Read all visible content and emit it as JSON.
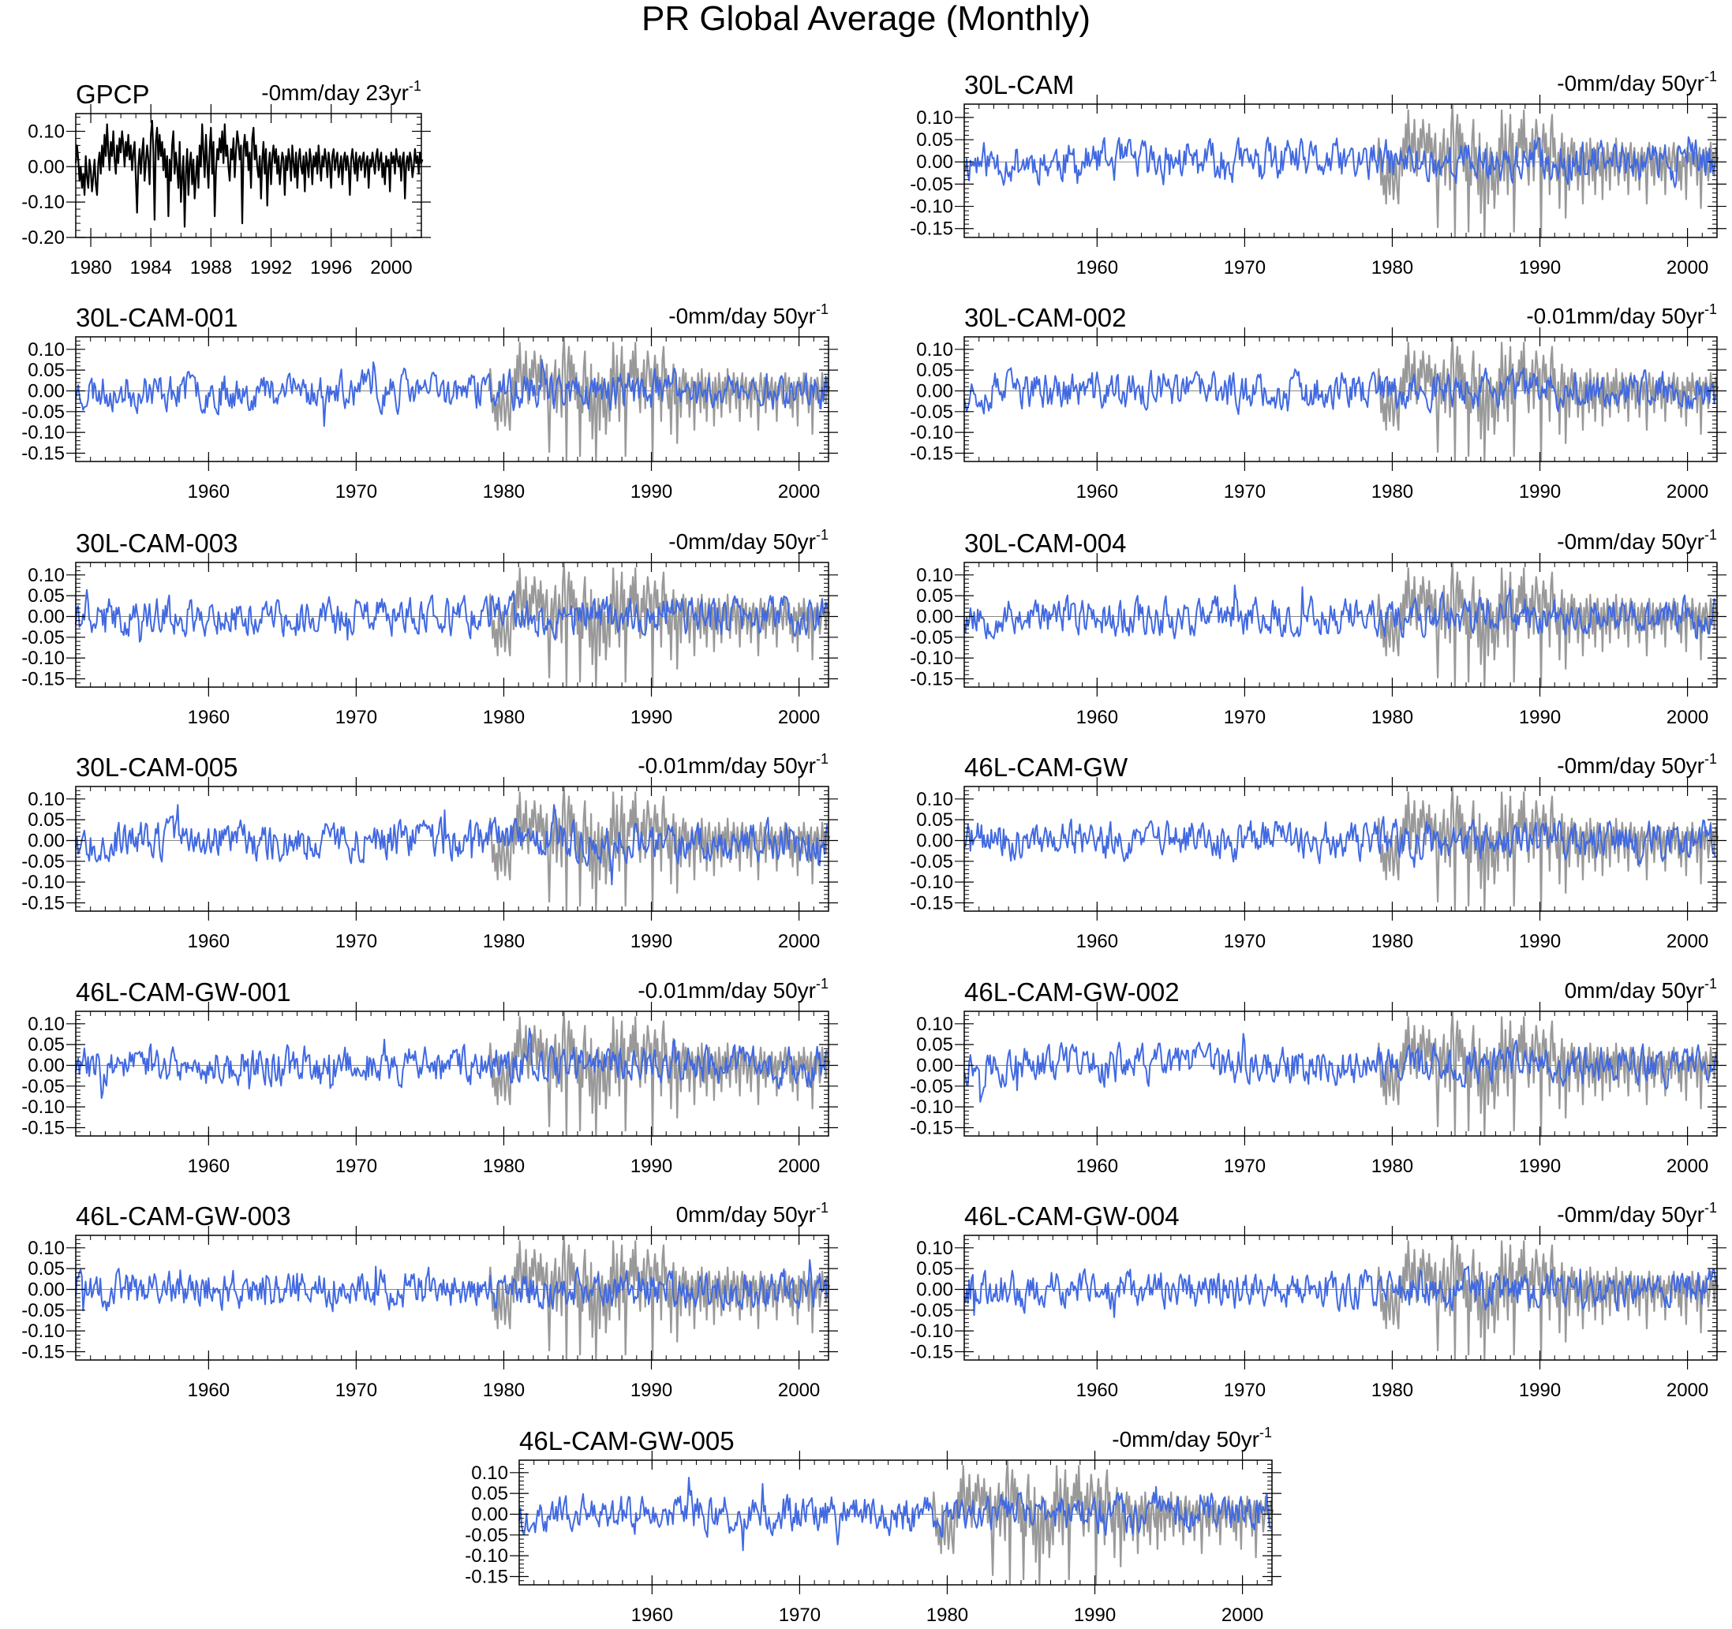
{
  "figure": {
    "title": "PR Global Average (Monthly)"
  },
  "colors": {
    "observed": "#000000",
    "model": "#4169E1",
    "reference": "#999999",
    "zero_line": "#888888"
  },
  "chart_data": [
    {
      "type": "line",
      "title": "GPCP",
      "trend_value": "-0mm/day",
      "trend_period": "23yr",
      "trend_exponent": "-1",
      "xlim": [
        1979,
        2002
      ],
      "ylim": [
        -0.2,
        0.15
      ],
      "x_ticks": [
        1980,
        1984,
        1988,
        1992,
        1996,
        2000
      ],
      "y_ticks": [
        -0.2,
        -0.1,
        0.0,
        0.1
      ],
      "y_tick_labels": [
        "-0.20",
        "-0.10",
        "0.00",
        "0.10"
      ],
      "series": [
        {
          "role": "observed",
          "start": 1979,
          "step": 0.0833,
          "values": [
            0.01,
            0.06,
            0.02,
            -0.04,
            0.0,
            -0.06,
            -0.02,
            -0.08,
            0.03,
            -0.03,
            -0.06,
            0.02,
            -0.01,
            -0.07,
            -0.03,
            0.02,
            -0.05,
            -0.08,
            0.01,
            0.04,
            -0.02,
            0.06,
            0.0,
            0.09,
            0.03,
            0.12,
            0.05,
            -0.01,
            0.07,
            0.03,
            0.1,
            0.02,
            -0.02,
            0.06,
            0.01,
            0.08,
            0.04,
            0.1,
            0.06,
            0.0,
            0.07,
            0.03,
            0.09,
            0.02,
            0.06,
            -0.01,
            0.04,
            0.07,
            -0.03,
            -0.13,
            0.0,
            0.05,
            -0.02,
            0.04,
            0.08,
            -0.04,
            0.01,
            0.06,
            0.02,
            -0.05,
            0.09,
            0.13,
            0.04,
            -0.15,
            0.07,
            0.11,
            0.02,
            0.09,
            0.03,
            0.07,
            -0.01,
            0.05,
            -0.03,
            0.03,
            -0.14,
            0.02,
            -0.04,
            0.06,
            0.1,
            -0.02,
            0.04,
            0.0,
            -0.06,
            0.07,
            -0.1,
            -0.03,
            0.03,
            -0.17,
            -0.02,
            0.05,
            -0.08,
            0.01,
            0.04,
            -0.05,
            0.02,
            -0.09,
            -0.03,
            0.03,
            -0.06,
            0.06,
            0.0,
            0.12,
            0.04,
            -0.03,
            0.09,
            0.01,
            -0.06,
            0.05,
            0.11,
            -0.02,
            0.07,
            -0.14,
            -0.01,
            0.05,
            0.02,
            0.08,
            0.04,
            0.1,
            0.01,
            0.12,
            0.03,
            0.06,
            0.0,
            -0.04,
            0.05,
            0.02,
            0.08,
            -0.03,
            0.04,
            0.1,
            0.07,
            0.02,
            0.06,
            -0.16,
            0.05,
            0.09,
            0.03,
            0.07,
            -0.01,
            0.04,
            -0.06,
            0.08,
            0.11,
            0.02,
            0.06,
            0.0,
            -0.03,
            0.03,
            -0.09,
            0.02,
            0.07,
            -0.02,
            0.05,
            -0.11,
            0.0,
            0.04,
            -0.05,
            0.03,
            0.06,
            0.01,
            0.05,
            -0.02,
            0.03,
            -0.05,
            0.0,
            0.04,
            0.02,
            -0.08,
            0.03,
            -0.01,
            0.05,
            0.02,
            -0.04,
            0.06,
            0.01,
            -0.03,
            0.04,
            -0.06,
            0.02,
            0.05,
            0.0,
            -0.02,
            0.03,
            -0.07,
            0.04,
            0.01,
            -0.03,
            0.05,
            0.02,
            -0.05,
            0.03,
            0.0,
            0.04,
            -0.02,
            0.06,
            0.01,
            -0.04,
            0.03,
            0.0,
            0.05,
            0.02,
            -0.03,
            0.04,
            0.01,
            -0.06,
            0.03,
            0.05,
            -0.01,
            0.02,
            0.04,
            -0.03,
            0.0,
            0.03,
            -0.05,
            0.02,
            0.04,
            -0.01,
            0.03,
            0.0,
            -0.08,
            0.02,
            0.05,
            0.01,
            -0.02,
            0.04,
            -0.04,
            0.02,
            0.03,
            -0.01,
            0.02,
            0.04,
            -0.03,
            0.01,
            0.03,
            -0.06,
            0.02,
            0.0,
            0.04,
            0.01,
            -0.02,
            0.03,
            0.05,
            -0.01,
            0.02,
            0.04,
            -0.03,
            0.01,
            -0.05,
            0.03,
            0.0,
            0.02,
            -0.07,
            0.04,
            0.01,
            0.03,
            -0.02,
            0.05,
            0.02,
            0.0,
            0.03,
            -0.04,
            0.02,
            0.04,
            -0.09,
            0.01,
            0.03,
            -0.01,
            0.04,
            0.02,
            -0.03,
            0.0,
            0.05,
            0.01,
            0.03,
            -0.02,
            0.04,
            0.01,
            0.02
          ]
        }
      ]
    },
    {
      "type": "line",
      "title": "30L-CAM",
      "trend_value": "-0mm/day",
      "trend_period": "50yr",
      "trend_exponent": "-1",
      "xlim": [
        1951,
        2002
      ],
      "ylim": [
        -0.17,
        0.13
      ],
      "x_ticks": [
        1960,
        1970,
        1980,
        1990,
        2000
      ],
      "y_ticks": [
        -0.15,
        -0.1,
        -0.05,
        0.0,
        0.05,
        0.1
      ],
      "y_tick_labels": [
        "-0.15",
        "-0.10",
        "-0.05",
        "0.00",
        "0.05",
        "0.10"
      ],
      "series": [
        {
          "role": "reference",
          "name": "GPCP",
          "start": 1979
        },
        {
          "role": "model",
          "start": 1951,
          "seed": 11
        }
      ]
    },
    {
      "type": "line",
      "title": "30L-CAM-001",
      "trend_value": "-0mm/day",
      "trend_period": "50yr",
      "trend_exponent": "-1",
      "xlim": [
        1951,
        2002
      ],
      "ylim": [
        -0.17,
        0.13
      ],
      "x_ticks": [
        1960,
        1970,
        1980,
        1990,
        2000
      ],
      "y_ticks": [
        -0.15,
        -0.1,
        -0.05,
        0.0,
        0.05,
        0.1
      ],
      "y_tick_labels": [
        "-0.15",
        "-0.10",
        "-0.05",
        "0.00",
        "0.05",
        "0.10"
      ],
      "series": [
        {
          "role": "reference",
          "name": "GPCP",
          "start": 1979
        },
        {
          "role": "model",
          "start": 1951,
          "seed": 23
        }
      ]
    },
    {
      "type": "line",
      "title": "30L-CAM-002",
      "trend_value": "-0.01mm/day",
      "trend_period": "50yr",
      "trend_exponent": "-1",
      "xlim": [
        1951,
        2002
      ],
      "ylim": [
        -0.17,
        0.13
      ],
      "x_ticks": [
        1960,
        1970,
        1980,
        1990,
        2000
      ],
      "y_ticks": [
        -0.15,
        -0.1,
        -0.05,
        0.0,
        0.05,
        0.1
      ],
      "y_tick_labels": [
        "-0.15",
        "-0.10",
        "-0.05",
        "0.00",
        "0.05",
        "0.10"
      ],
      "series": [
        {
          "role": "reference",
          "name": "GPCP",
          "start": 1979
        },
        {
          "role": "model",
          "start": 1951,
          "seed": 37
        }
      ]
    },
    {
      "type": "line",
      "title": "30L-CAM-003",
      "trend_value": "-0mm/day",
      "trend_period": "50yr",
      "trend_exponent": "-1",
      "xlim": [
        1951,
        2002
      ],
      "ylim": [
        -0.17,
        0.13
      ],
      "x_ticks": [
        1960,
        1970,
        1980,
        1990,
        2000
      ],
      "y_ticks": [
        -0.15,
        -0.1,
        -0.05,
        0.0,
        0.05,
        0.1
      ],
      "y_tick_labels": [
        "-0.15",
        "-0.10",
        "-0.05",
        "0.00",
        "0.05",
        "0.10"
      ],
      "series": [
        {
          "role": "reference",
          "name": "GPCP",
          "start": 1979
        },
        {
          "role": "model",
          "start": 1951,
          "seed": 41
        }
      ]
    },
    {
      "type": "line",
      "title": "30L-CAM-004",
      "trend_value": "-0mm/day",
      "trend_period": "50yr",
      "trend_exponent": "-1",
      "xlim": [
        1951,
        2002
      ],
      "ylim": [
        -0.17,
        0.13
      ],
      "x_ticks": [
        1960,
        1970,
        1980,
        1990,
        2000
      ],
      "y_ticks": [
        -0.15,
        -0.1,
        -0.05,
        0.0,
        0.05,
        0.1
      ],
      "y_tick_labels": [
        "-0.15",
        "-0.10",
        "-0.05",
        "0.00",
        "0.05",
        "0.10"
      ],
      "series": [
        {
          "role": "reference",
          "name": "GPCP",
          "start": 1979
        },
        {
          "role": "model",
          "start": 1951,
          "seed": 53
        }
      ]
    },
    {
      "type": "line",
      "title": "30L-CAM-005",
      "trend_value": "-0.01mm/day",
      "trend_period": "50yr",
      "trend_exponent": "-1",
      "xlim": [
        1951,
        2002
      ],
      "ylim": [
        -0.17,
        0.13
      ],
      "x_ticks": [
        1960,
        1970,
        1980,
        1990,
        2000
      ],
      "y_ticks": [
        -0.15,
        -0.1,
        -0.05,
        0.0,
        0.05,
        0.1
      ],
      "y_tick_labels": [
        "-0.15",
        "-0.10",
        "-0.05",
        "0.00",
        "0.05",
        "0.10"
      ],
      "series": [
        {
          "role": "reference",
          "name": "GPCP",
          "start": 1979
        },
        {
          "role": "model",
          "start": 1951,
          "seed": 67
        }
      ]
    },
    {
      "type": "line",
      "title": "46L-CAM-GW",
      "trend_value": "-0mm/day",
      "trend_period": "50yr",
      "trend_exponent": "-1",
      "xlim": [
        1951,
        2002
      ],
      "ylim": [
        -0.17,
        0.13
      ],
      "x_ticks": [
        1960,
        1970,
        1980,
        1990,
        2000
      ],
      "y_ticks": [
        -0.15,
        -0.1,
        -0.05,
        0.0,
        0.05,
        0.1
      ],
      "y_tick_labels": [
        "-0.15",
        "-0.10",
        "-0.05",
        "0.00",
        "0.05",
        "0.10"
      ],
      "series": [
        {
          "role": "reference",
          "name": "GPCP",
          "start": 1979
        },
        {
          "role": "model",
          "start": 1951,
          "seed": 71
        }
      ]
    },
    {
      "type": "line",
      "title": "46L-CAM-GW-001",
      "trend_value": "-0.01mm/day",
      "trend_period": "50yr",
      "trend_exponent": "-1",
      "xlim": [
        1951,
        2002
      ],
      "ylim": [
        -0.17,
        0.13
      ],
      "x_ticks": [
        1960,
        1970,
        1980,
        1990,
        2000
      ],
      "y_ticks": [
        -0.15,
        -0.1,
        -0.05,
        0.0,
        0.05,
        0.1
      ],
      "y_tick_labels": [
        "-0.15",
        "-0.10",
        "-0.05",
        "0.00",
        "0.05",
        "0.10"
      ],
      "series": [
        {
          "role": "reference",
          "name": "GPCP",
          "start": 1979
        },
        {
          "role": "model",
          "start": 1951,
          "seed": 83
        }
      ]
    },
    {
      "type": "line",
      "title": "46L-CAM-GW-002",
      "trend_value": "0mm/day",
      "trend_period": "50yr",
      "trend_exponent": "-1",
      "xlim": [
        1951,
        2002
      ],
      "ylim": [
        -0.17,
        0.13
      ],
      "x_ticks": [
        1960,
        1970,
        1980,
        1990,
        2000
      ],
      "y_ticks": [
        -0.15,
        -0.1,
        -0.05,
        0.0,
        0.05,
        0.1
      ],
      "y_tick_labels": [
        "-0.15",
        "-0.10",
        "-0.05",
        "0.00",
        "0.05",
        "0.10"
      ],
      "series": [
        {
          "role": "reference",
          "name": "GPCP",
          "start": 1979
        },
        {
          "role": "model",
          "start": 1951,
          "seed": 97
        }
      ]
    },
    {
      "type": "line",
      "title": "46L-CAM-GW-003",
      "trend_value": "0mm/day",
      "trend_period": "50yr",
      "trend_exponent": "-1",
      "xlim": [
        1951,
        2002
      ],
      "ylim": [
        -0.17,
        0.13
      ],
      "x_ticks": [
        1960,
        1970,
        1980,
        1990,
        2000
      ],
      "y_ticks": [
        -0.15,
        -0.1,
        -0.05,
        0.0,
        0.05,
        0.1
      ],
      "y_tick_labels": [
        "-0.15",
        "-0.10",
        "-0.05",
        "0.00",
        "0.05",
        "0.10"
      ],
      "series": [
        {
          "role": "reference",
          "name": "GPCP",
          "start": 1979
        },
        {
          "role": "model",
          "start": 1951,
          "seed": 101
        }
      ]
    },
    {
      "type": "line",
      "title": "46L-CAM-GW-004",
      "trend_value": "-0mm/day",
      "trend_period": "50yr",
      "trend_exponent": "-1",
      "xlim": [
        1951,
        2002
      ],
      "ylim": [
        -0.17,
        0.13
      ],
      "x_ticks": [
        1960,
        1970,
        1980,
        1990,
        2000
      ],
      "y_ticks": [
        -0.15,
        -0.1,
        -0.05,
        0.0,
        0.05,
        0.1
      ],
      "y_tick_labels": [
        "-0.15",
        "-0.10",
        "-0.05",
        "0.00",
        "0.05",
        "0.10"
      ],
      "series": [
        {
          "role": "reference",
          "name": "GPCP",
          "start": 1979
        },
        {
          "role": "model",
          "start": 1951,
          "seed": 113
        }
      ]
    },
    {
      "type": "line",
      "title": "46L-CAM-GW-005",
      "trend_value": "-0mm/day",
      "trend_period": "50yr",
      "trend_exponent": "-1",
      "xlim": [
        1951,
        2002
      ],
      "ylim": [
        -0.17,
        0.13
      ],
      "x_ticks": [
        1960,
        1970,
        1980,
        1990,
        2000
      ],
      "y_ticks": [
        -0.15,
        -0.1,
        -0.05,
        0.0,
        0.05,
        0.1
      ],
      "y_tick_labels": [
        "-0.15",
        "-0.10",
        "-0.05",
        "0.00",
        "0.05",
        "0.10"
      ],
      "series": [
        {
          "role": "reference",
          "name": "GPCP",
          "start": 1979
        },
        {
          "role": "model",
          "start": 1951,
          "seed": 127
        }
      ]
    }
  ]
}
